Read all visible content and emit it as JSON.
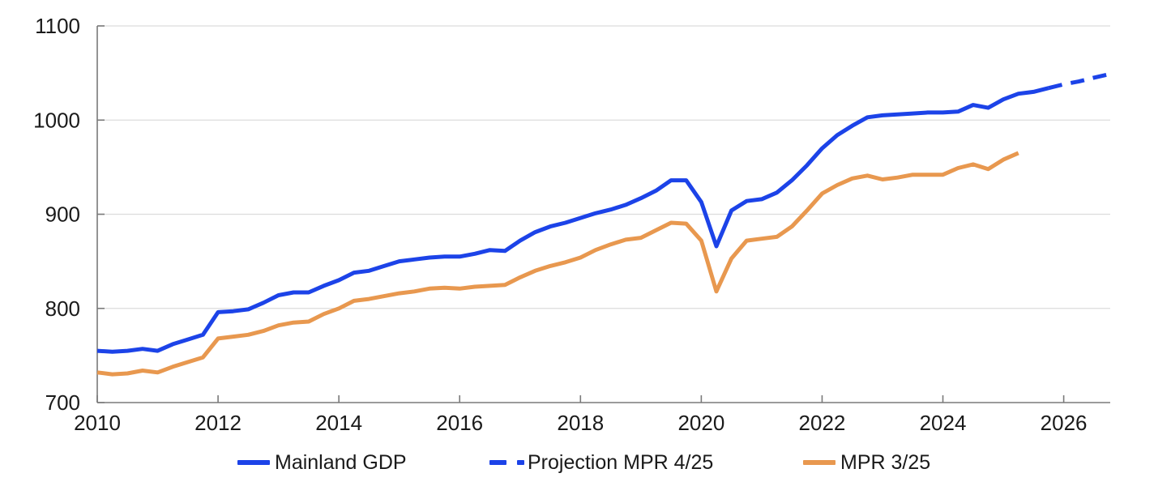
{
  "chart_data": {
    "type": "line",
    "title": "",
    "xlabel": "",
    "ylabel": "",
    "grid": "horizontal",
    "legend_position": "bottom",
    "x_ticks": [
      2010,
      2012,
      2014,
      2016,
      2018,
      2020,
      2022,
      2024,
      2026
    ],
    "y_ticks": [
      700,
      800,
      900,
      1000,
      1100
    ],
    "x_range": [
      2010,
      2026.77
    ],
    "y_range": [
      700,
      1100
    ],
    "colors": {
      "blue": "#1C43E8",
      "orange": "#E8984F",
      "axis": "#7a7a7a",
      "gridline": "#dcdcdc",
      "text": "#1a1a1a"
    },
    "series": [
      {
        "name": "Mainland GDP",
        "color": "#1C43E8",
        "style": "solid",
        "x": [
          2010.0,
          2010.25,
          2010.5,
          2010.75,
          2011.0,
          2011.25,
          2011.5,
          2011.75,
          2012.0,
          2012.25,
          2012.5,
          2012.75,
          2013.0,
          2013.25,
          2013.5,
          2013.75,
          2014.0,
          2014.25,
          2014.5,
          2014.75,
          2015.0,
          2015.25,
          2015.5,
          2015.75,
          2016.0,
          2016.25,
          2016.5,
          2016.75,
          2017.0,
          2017.25,
          2017.5,
          2017.75,
          2018.0,
          2018.25,
          2018.5,
          2018.75,
          2019.0,
          2019.25,
          2019.5,
          2019.75,
          2020.0,
          2020.25,
          2020.5,
          2020.75,
          2021.0,
          2021.25,
          2021.5,
          2021.75,
          2022.0,
          2022.25,
          2022.5,
          2022.75,
          2023.0,
          2023.25,
          2023.5,
          2023.75,
          2024.0,
          2024.25,
          2024.5,
          2024.75,
          2025.0,
          2025.25,
          2025.5,
          2025.75
        ],
        "values": [
          755,
          754,
          755,
          757,
          755,
          762,
          767,
          772,
          796,
          797,
          799,
          806,
          814,
          817,
          817,
          824,
          830,
          838,
          840,
          845,
          850,
          852,
          854,
          855,
          855,
          858,
          862,
          861,
          872,
          881,
          887,
          891,
          896,
          901,
          905,
          910,
          917,
          925,
          936,
          936,
          913,
          866,
          904,
          914,
          916,
          923,
          936,
          952,
          970,
          984,
          994,
          1003,
          1005,
          1006,
          1007,
          1008,
          1008,
          1009,
          1016,
          1013,
          1022,
          1028,
          1030,
          1034
        ]
      },
      {
        "name": "Projection MPR 4/25",
        "color": "#1C43E8",
        "style": "dashed",
        "x": [
          2025.75,
          2026.0,
          2026.25,
          2026.5,
          2026.77
        ],
        "values": [
          1034,
          1038,
          1041,
          1045,
          1049
        ]
      },
      {
        "name": "MPR 3/25",
        "color": "#E8984F",
        "style": "solid",
        "x": [
          2010.0,
          2010.25,
          2010.5,
          2010.75,
          2011.0,
          2011.25,
          2011.5,
          2011.75,
          2012.0,
          2012.25,
          2012.5,
          2012.75,
          2013.0,
          2013.25,
          2013.5,
          2013.75,
          2014.0,
          2014.25,
          2014.5,
          2014.75,
          2015.0,
          2015.25,
          2015.5,
          2015.75,
          2016.0,
          2016.25,
          2016.5,
          2016.75,
          2017.0,
          2017.25,
          2017.5,
          2017.75,
          2018.0,
          2018.25,
          2018.5,
          2018.75,
          2019.0,
          2019.25,
          2019.5,
          2019.75,
          2020.0,
          2020.25,
          2020.5,
          2020.75,
          2021.0,
          2021.25,
          2021.5,
          2021.75,
          2022.0,
          2022.25,
          2022.5,
          2022.75,
          2023.0,
          2023.25,
          2023.5,
          2023.75,
          2024.0,
          2024.25,
          2024.5,
          2024.75,
          2025.0,
          2025.25
        ],
        "values": [
          732,
          730,
          731,
          734,
          732,
          738,
          743,
          748,
          768,
          770,
          772,
          776,
          782,
          785,
          786,
          794,
          800,
          808,
          810,
          813,
          816,
          818,
          821,
          822,
          821,
          823,
          824,
          825,
          833,
          840,
          845,
          849,
          854,
          862,
          868,
          873,
          875,
          883,
          891,
          890,
          872,
          818,
          853,
          872,
          874,
          876,
          887,
          904,
          922,
          931,
          938,
          941,
          937,
          939,
          942,
          942,
          942,
          949,
          953,
          948,
          958,
          965
        ]
      }
    ]
  },
  "legend": {
    "items": [
      {
        "label": "Mainland GDP"
      },
      {
        "label": "Projection MPR 4/25"
      },
      {
        "label": "MPR 3/25"
      }
    ]
  }
}
